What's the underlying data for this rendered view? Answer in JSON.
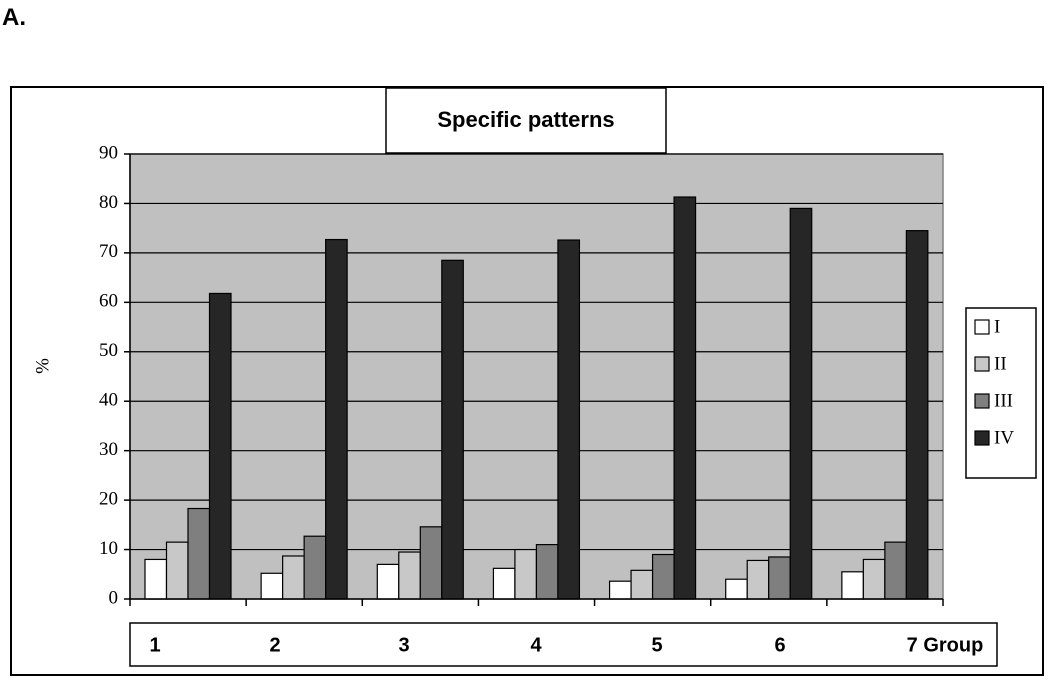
{
  "panel_label": "A.",
  "chart_data": {
    "type": "bar",
    "title": "Specific patterns",
    "ylabel": "%",
    "xlabel": "Group",
    "ylim": [
      0,
      90
    ],
    "yticks": [
      0,
      10,
      20,
      30,
      40,
      50,
      60,
      70,
      80,
      90
    ],
    "categories": [
      "1",
      "2",
      "3",
      "4",
      "5",
      "6",
      "7"
    ],
    "category_labels": [
      "1",
      "2",
      "3",
      "4",
      "5",
      "6",
      "7 Group"
    ],
    "series": [
      {
        "name": "I",
        "color": "#ffffff",
        "values": [
          8,
          5.2,
          7,
          6.2,
          3.6,
          4,
          5.5
        ]
      },
      {
        "name": "II",
        "color": "#c8c8c8",
        "values": [
          11.5,
          8.7,
          9.5,
          10,
          5.8,
          7.8,
          8
        ]
      },
      {
        "name": "III",
        "color": "#7f7f7f",
        "values": [
          18.3,
          12.7,
          14.6,
          11,
          9,
          8.5,
          11.5
        ]
      },
      {
        "name": "IV",
        "color": "#262626",
        "values": [
          61.8,
          72.7,
          68.5,
          72.6,
          81.3,
          79,
          74.5
        ]
      }
    ],
    "plot_background": "#c0c0c0",
    "grid": true,
    "legend_position": "right"
  }
}
